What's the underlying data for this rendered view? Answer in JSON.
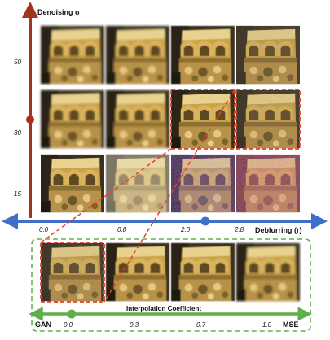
{
  "denoising_axis": {
    "title": "Denoising σ",
    "ticks": [
      "50",
      "30",
      "15"
    ],
    "marker_value": "30",
    "color": "#a3321f"
  },
  "deblurring_axis": {
    "title": "Deblurring (r)",
    "ticks": [
      "0.0",
      "0.8",
      "2.0",
      "2.8"
    ],
    "marker_value": "2.0",
    "color": "#3f6fc9"
  },
  "interpolation_axis": {
    "title": "Interpolation Coefficient",
    "ticks": [
      "0.0",
      "0.3",
      "0.7",
      "1.0"
    ],
    "left_label": "GAN",
    "right_label": "MSE",
    "marker_value": "0.0",
    "color": "#5fb04a"
  },
  "grid": {
    "rows": [
      "50",
      "30",
      "15"
    ],
    "cols": [
      "0.0",
      "0.8",
      "2.0",
      "2.8"
    ],
    "highlighted_cell": {
      "row": "30",
      "col": "2.0",
      "color": "#e2442d"
    },
    "cell_degradation": [
      [
        "blur",
        "blur",
        "slight-blur",
        "sharp-texture"
      ],
      [
        "blur",
        "blur",
        "sharp",
        "sharp-texture"
      ],
      [
        "clean",
        "hazy",
        "noisy-artifacts",
        "heavy-artifacts"
      ]
    ]
  },
  "interpolation_row": {
    "frame_color": "#5fb04a",
    "highlighted_index": 0
  },
  "colors": {
    "stone_gold": "#c9a24a",
    "stone_shadow": "#5e4a22",
    "stone_light": "#e8d38e",
    "background_dark": "#3b3120"
  }
}
